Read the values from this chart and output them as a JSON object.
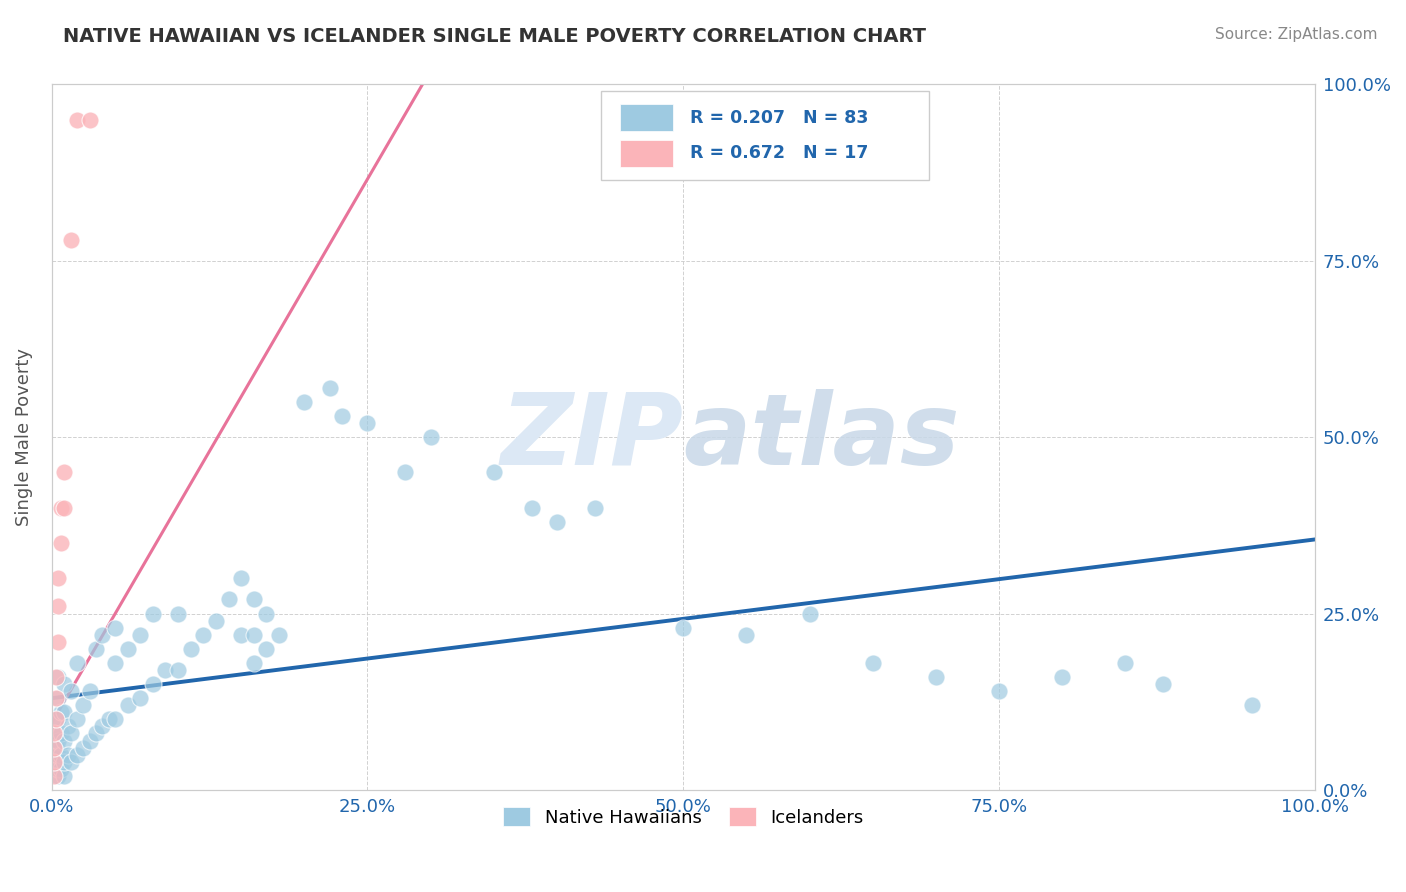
{
  "title": "NATIVE HAWAIIAN VS ICELANDER SINGLE MALE POVERTY CORRELATION CHART",
  "source": "Source: ZipAtlas.com",
  "ylabel": "Single Male Poverty",
  "xlim": [
    0,
    1
  ],
  "ylim": [
    0,
    1
  ],
  "xticks": [
    0,
    0.25,
    0.5,
    0.75,
    1.0
  ],
  "yticks": [
    0,
    0.25,
    0.5,
    0.75,
    1.0
  ],
  "xticklabels": [
    "0.0%",
    "25.0%",
    "50.0%",
    "75.0%",
    "100.0%"
  ],
  "yticklabels_right": [
    "0.0%",
    "25.0%",
    "50.0%",
    "75.0%",
    "100.0%"
  ],
  "background_color": "#ffffff",
  "blue_color": "#9ecae1",
  "pink_color": "#fbb4b9",
  "blue_line_color": "#2166ac",
  "pink_line_color": "#e8739a",
  "title_color": "#333333",
  "source_color": "#888888",
  "axis_tick_color": "#2166ac",
  "ylabel_color": "#555555",
  "legend_text_color": "#2166ac",
  "watermark_color": "#dce8f5",
  "native_hawaiian_x": [
    0.003,
    0.003,
    0.003,
    0.003,
    0.003,
    0.003,
    0.003,
    0.003,
    0.005,
    0.005,
    0.005,
    0.005,
    0.005,
    0.005,
    0.005,
    0.007,
    0.007,
    0.007,
    0.007,
    0.01,
    0.01,
    0.01,
    0.01,
    0.01,
    0.013,
    0.013,
    0.015,
    0.015,
    0.015,
    0.02,
    0.02,
    0.02,
    0.025,
    0.025,
    0.03,
    0.03,
    0.035,
    0.035,
    0.04,
    0.04,
    0.045,
    0.05,
    0.05,
    0.05,
    0.06,
    0.06,
    0.07,
    0.07,
    0.08,
    0.08,
    0.09,
    0.1,
    0.1,
    0.11,
    0.12,
    0.13,
    0.14,
    0.15,
    0.15,
    0.16,
    0.16,
    0.16,
    0.17,
    0.17,
    0.18,
    0.2,
    0.22,
    0.23,
    0.25,
    0.28,
    0.3,
    0.35,
    0.38,
    0.4,
    0.43,
    0.5,
    0.55,
    0.6,
    0.65,
    0.7,
    0.75,
    0.8,
    0.85,
    0.88,
    0.95
  ],
  "native_hawaiian_y": [
    0.02,
    0.03,
    0.04,
    0.05,
    0.06,
    0.07,
    0.08,
    0.1,
    0.02,
    0.03,
    0.05,
    0.07,
    0.1,
    0.13,
    0.16,
    0.03,
    0.05,
    0.08,
    0.11,
    0.02,
    0.04,
    0.07,
    0.11,
    0.15,
    0.05,
    0.09,
    0.04,
    0.08,
    0.14,
    0.05,
    0.1,
    0.18,
    0.06,
    0.12,
    0.07,
    0.14,
    0.08,
    0.2,
    0.09,
    0.22,
    0.1,
    0.1,
    0.18,
    0.23,
    0.12,
    0.2,
    0.13,
    0.22,
    0.15,
    0.25,
    0.17,
    0.17,
    0.25,
    0.2,
    0.22,
    0.24,
    0.27,
    0.22,
    0.3,
    0.18,
    0.22,
    0.27,
    0.2,
    0.25,
    0.22,
    0.55,
    0.57,
    0.53,
    0.52,
    0.45,
    0.5,
    0.45,
    0.4,
    0.38,
    0.4,
    0.23,
    0.22,
    0.25,
    0.18,
    0.16,
    0.14,
    0.16,
    0.18,
    0.15,
    0.12
  ],
  "icelander_x": [
    0.002,
    0.002,
    0.002,
    0.002,
    0.003,
    0.003,
    0.003,
    0.005,
    0.005,
    0.005,
    0.007,
    0.007,
    0.01,
    0.01,
    0.015,
    0.02,
    0.03
  ],
  "icelander_y": [
    0.02,
    0.04,
    0.06,
    0.08,
    0.1,
    0.13,
    0.16,
    0.21,
    0.26,
    0.3,
    0.35,
    0.4,
    0.4,
    0.45,
    0.78,
    0.95,
    0.95
  ],
  "blue_trendline_x": [
    0.0,
    1.0
  ],
  "blue_trendline_y": [
    0.13,
    0.355
  ],
  "pink_trendline_x": [
    0.0,
    0.3
  ],
  "pink_trendline_y": [
    0.095,
    1.02
  ]
}
